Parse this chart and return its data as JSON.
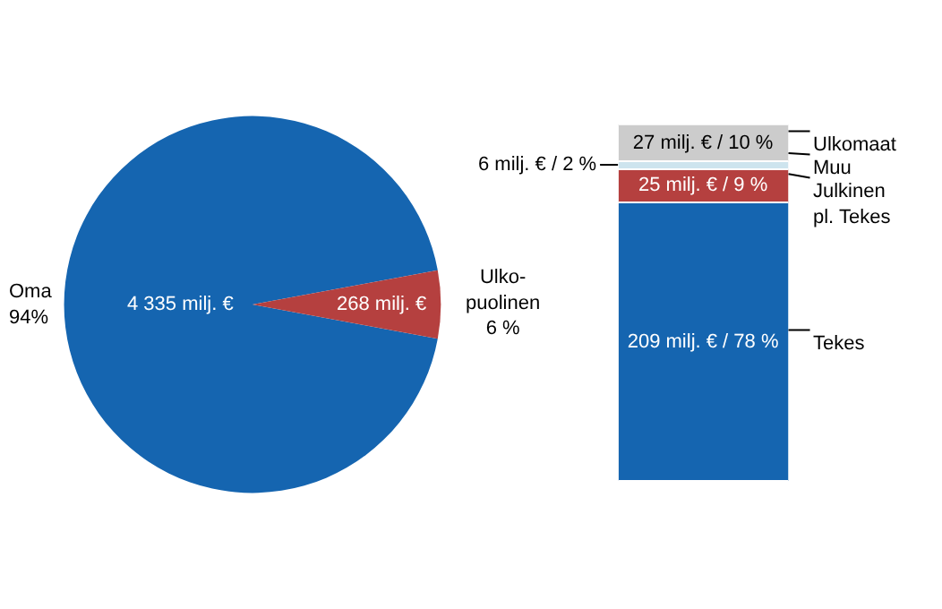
{
  "chart_data": [
    {
      "type": "pie",
      "categories": [
        "Oma",
        "Ulko-\npuolinen"
      ],
      "values": [
        4335,
        268
      ],
      "colors": [
        "#1565b0",
        "#b5403f"
      ],
      "value_labels": [
        "4 335 milj. €",
        "268 milj. €"
      ],
      "annotations": [
        "94%",
        "6 %"
      ]
    },
    {
      "type": "bar",
      "stacked": true,
      "categories": [
        null
      ],
      "series": [
        {
          "name": "Tekes",
          "color": "#1565b0",
          "values": [
            209
          ],
          "value_labels": [
            "209 milj. € / 78 %"
          ]
        },
        {
          "name": "Julkinen\npl. Tekes",
          "color": "#b5403f",
          "values": [
            25
          ],
          "value_labels": [
            "25 milj. € / 9 %"
          ]
        },
        {
          "name": "Muu",
          "color": "#cde4ee",
          "values": [
            6
          ],
          "value_labels": [
            "6 milj. € / 2 %"
          ]
        },
        {
          "name": "Ulkomaat",
          "color": "#cccccc",
          "values": [
            27
          ],
          "value_labels": [
            "27 milj. € / 10 %"
          ]
        }
      ]
    }
  ]
}
